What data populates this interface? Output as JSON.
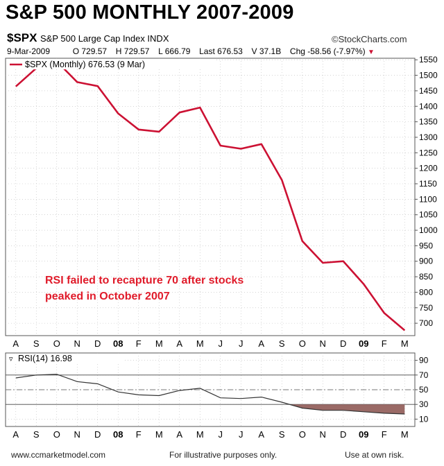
{
  "header": {
    "title": "S&P 500 MONTHLY 2007-2009",
    "ticker": "$SPX",
    "ticker_desc": "S&P 500 Large Cap Index  INDX",
    "brand": "©StockCharts.com",
    "date": "9-Mar-2009",
    "open": "O 729.57",
    "high": "H 729.57",
    "low": "L 666.79",
    "last": "Last 676.53",
    "volume": "V 37.1B",
    "change": "Chg -58.56 (-7.97%)"
  },
  "annotation": {
    "line1": "RSI failed to recapture 70 after stocks",
    "line2": "peaked in October 2007"
  },
  "footer": {
    "left": "www.ccmarketmodel.com",
    "center": "For illustrative purposes only.",
    "right": "Use at own risk."
  },
  "colors": {
    "price_line": "#cc1133",
    "rsi_line": "#333333",
    "rsi_fill": "#9a6a66",
    "annotation": "#e01b2a",
    "grid": "#bbbbbb"
  },
  "chart_data": [
    {
      "type": "line",
      "legend": "$SPX (Monthly) 676.53 (9 Mar)",
      "categories": [
        "A",
        "S",
        "O",
        "N",
        "D",
        "08",
        "F",
        "M",
        "A",
        "M",
        "J",
        "J",
        "A",
        "S",
        "O",
        "N",
        "D",
        "09",
        "F",
        "M"
      ],
      "series": [
        {
          "name": "$SPX (Monthly)",
          "values": [
            1464,
            1523,
            1545,
            1478,
            1465,
            1377,
            1325,
            1318,
            1380,
            1396,
            1273,
            1263,
            1278,
            1162,
            965,
            895,
            900,
            826,
            733,
            677
          ]
        }
      ],
      "y_ticks": [
        700,
        750,
        800,
        850,
        900,
        950,
        1000,
        1050,
        1100,
        1150,
        1200,
        1250,
        1300,
        1350,
        1400,
        1450,
        1500,
        1550
      ],
      "ylim": [
        660,
        1555
      ],
      "y_axis_side": "right",
      "grid": true
    },
    {
      "type": "line",
      "legend": "RSI(14) 16.98",
      "categories": [
        "A",
        "S",
        "O",
        "N",
        "D",
        "08",
        "F",
        "M",
        "A",
        "M",
        "J",
        "J",
        "A",
        "S",
        "O",
        "N",
        "D",
        "09",
        "F",
        "M"
      ],
      "series": [
        {
          "name": "RSI(14)",
          "values": [
            66,
            70,
            71,
            61,
            58,
            47,
            43,
            42,
            49,
            52,
            39,
            38,
            40,
            33,
            25,
            22,
            22,
            20,
            18,
            17
          ]
        }
      ],
      "reference_lines": [
        70,
        50,
        30
      ],
      "oversold_fill_below": 30,
      "y_ticks": [
        10,
        30,
        50,
        70,
        90
      ],
      "ylim": [
        0,
        100
      ],
      "y_axis_side": "right",
      "grid": true
    }
  ]
}
